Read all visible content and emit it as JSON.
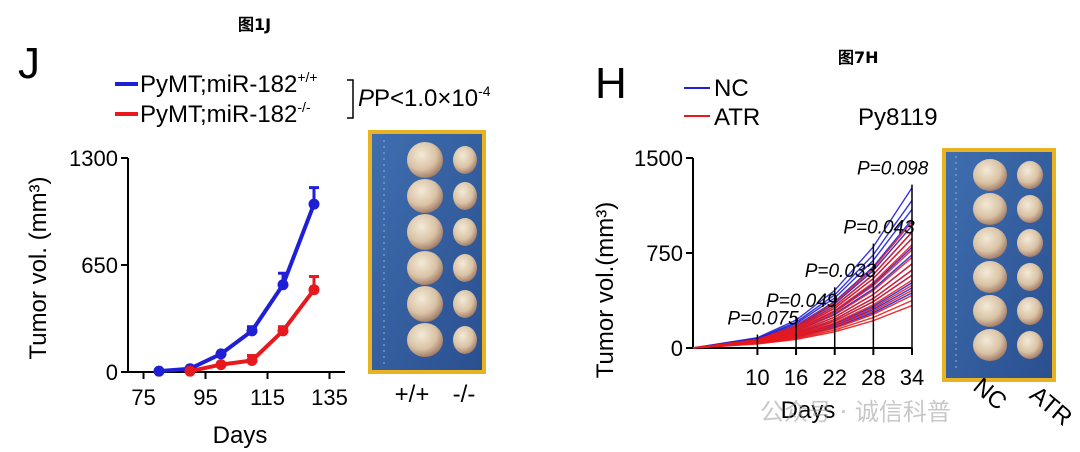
{
  "figure_caption_left": "图1J",
  "figure_caption_right": "图7H",
  "watermark": "公众号 · 诚信科普",
  "chart_data": [
    {
      "type": "line",
      "panel": "J",
      "xlabel": "Days",
      "ylabel": "Tumor vol. (mm³)",
      "xticks": [
        "75",
        "95",
        "115",
        "135"
      ],
      "yticks": [
        "0",
        "650",
        "1300"
      ],
      "xlim": [
        70,
        140
      ],
      "ylim": [
        0,
        1300
      ],
      "stat": "P<1.0×10",
      "stat_exp": "-4",
      "series": [
        {
          "name": "PyMT;miR-182",
          "sup": "+/+",
          "color": "#1f1fd6",
          "x": [
            80,
            90,
            100,
            110,
            120,
            130
          ],
          "y": [
            5,
            20,
            110,
            250,
            530,
            1020
          ],
          "err": [
            0,
            0,
            0,
            25,
            70,
            100
          ]
        },
        {
          "name": "PyMT;miR-182",
          "sup": "-/-",
          "color": "#e8191c",
          "x": [
            90,
            100,
            110,
            120,
            130
          ],
          "y": [
            5,
            45,
            70,
            250,
            500
          ],
          "err": [
            0,
            0,
            30,
            25,
            80
          ]
        }
      ],
      "photo_labels": [
        "+/+",
        "-/-"
      ]
    },
    {
      "type": "line",
      "panel": "H",
      "title": "Py8119",
      "xlabel": "Days",
      "ylabel": "Tumor vol.(mm³)",
      "xticks": [
        "10",
        "16",
        "22",
        "28",
        "34"
      ],
      "yticks": [
        "0",
        "750",
        "1500"
      ],
      "xlim": [
        0,
        34
      ],
      "ylim": [
        0,
        1500
      ],
      "days": [
        0,
        10,
        16,
        22,
        28,
        34
      ],
      "series": [
        {
          "name": "NC",
          "color": "#1f1fd6",
          "final_values": [
            1250,
            1150,
            1080,
            1000,
            950,
            900,
            850,
            780,
            720,
            650,
            600,
            560,
            500,
            460,
            420
          ]
        },
        {
          "name": "ATR",
          "color": "#e8191c",
          "final_values": [
            980,
            900,
            850,
            800,
            760,
            700,
            650,
            600,
            560,
            520,
            480,
            440,
            400,
            360,
            320
          ]
        }
      ],
      "p_values": [
        {
          "day": 10,
          "label": "P=0.075"
        },
        {
          "day": 16,
          "label": "P=0.049"
        },
        {
          "day": 22,
          "label": "P=0.033"
        },
        {
          "day": 28,
          "label": "P=0.043"
        },
        {
          "day": 34,
          "label": "P=0.098"
        }
      ],
      "photo_labels": [
        "NC",
        "ATR"
      ]
    }
  ]
}
